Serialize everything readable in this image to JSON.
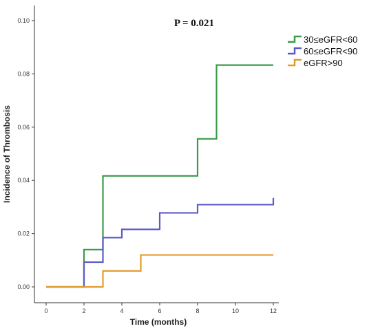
{
  "chart_data": {
    "type": "line",
    "step": true,
    "annotation": "P = 0.021",
    "xlabel": "Time (months)",
    "ylabel": "Incidence of Thrombosis",
    "xlim": [
      0,
      12
    ],
    "ylim": [
      0,
      0.1
    ],
    "x_ticks": [
      "0",
      "2",
      "4",
      "6",
      "8",
      "10",
      "12"
    ],
    "y_ticks": [
      "0.00",
      "0.02",
      "0.04",
      "0.06",
      "0.08",
      "0.10"
    ],
    "grid": false,
    "legend_position": "top-right",
    "series": [
      {
        "name": "30≤eGFR<60",
        "color": "#3a9a48",
        "x": [
          0,
          2,
          3,
          8,
          9,
          12
        ],
        "y": [
          0,
          0.014,
          0.0417,
          0.0556,
          0.0833,
          0.0833
        ]
      },
      {
        "name": "60≤eGFR<90",
        "color": "#5b5bc8",
        "x": [
          0,
          2,
          3,
          4,
          6,
          8,
          12
        ],
        "y": [
          0,
          0.0093,
          0.0185,
          0.0216,
          0.0278,
          0.0309,
          0.0334
        ]
      },
      {
        "name": "eGFR>90",
        "color": "#e39b2a",
        "x": [
          0,
          3,
          5,
          12
        ],
        "y": [
          0,
          0.006,
          0.012,
          0.012
        ]
      }
    ]
  }
}
